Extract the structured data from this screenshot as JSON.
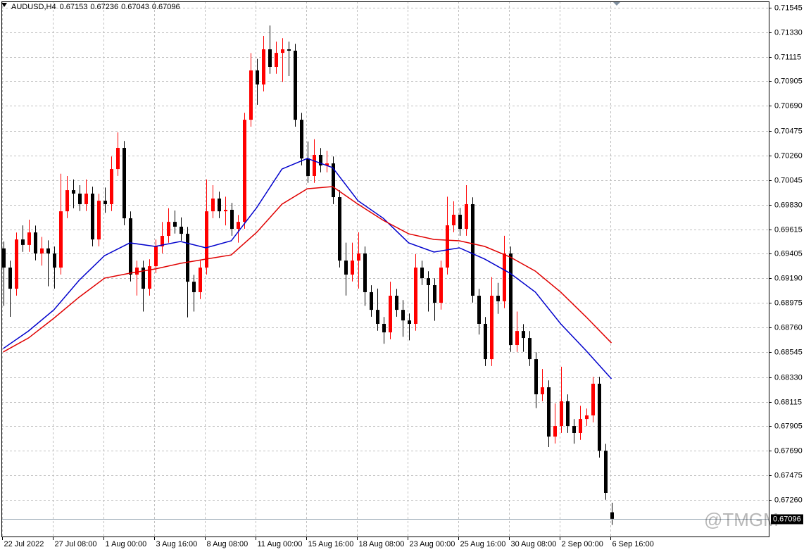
{
  "chart_data": {
    "type": "candlestick",
    "title": "AUDUSD,H4",
    "watermark": "@TMGM",
    "categories": [
      "22 Jul 2022",
      null,
      null,
      null,
      null,
      null,
      null,
      null,
      "27 Jul 08:00",
      null,
      null,
      null,
      null,
      null,
      null,
      null,
      "1 Aug 00:00",
      null,
      null,
      null,
      null,
      null,
      null,
      null,
      "3 Aug 16:00",
      null,
      null,
      null,
      null,
      null,
      null,
      null,
      "8 Aug 08:00",
      null,
      null,
      null,
      null,
      null,
      null,
      null,
      "11 Aug 00:00",
      null,
      null,
      null,
      null,
      null,
      null,
      null,
      "15 Aug 16:00",
      null,
      null,
      null,
      null,
      null,
      null,
      null,
      "18 Aug 08:00",
      null,
      null,
      null,
      null,
      null,
      null,
      null,
      "23 Aug 00:00",
      null,
      null,
      null,
      null,
      null,
      null,
      null,
      "25 Aug 16:00",
      null,
      null,
      null,
      null,
      null,
      null,
      null,
      "30 Aug 08:00",
      null,
      null,
      null,
      null,
      null,
      null,
      null,
      "2 Sep 00:00",
      null,
      null,
      null,
      null,
      null,
      null,
      null,
      "6 Sep 16:00"
    ],
    "open": [
      0.6945,
      0.69283,
      0.69099,
      0.69528,
      0.6948,
      0.69589,
      0.69406,
      0.6945,
      0.69406,
      0.69283,
      0.69773,
      0.69957,
      0.69927,
      0.69835,
      0.69927,
      0.69528,
      0.69865,
      0.69835,
      0.70141,
      0.70325,
      0.69712,
      0.69222,
      0.69283,
      0.69099,
      0.69295,
      0.69467,
      0.69559,
      0.69681,
      0.69639,
      0.69577,
      0.6916,
      0.69069,
      0.69283,
      0.69773,
      0.69884,
      0.69773,
      0.69786,
      0.6962,
      0.69681,
      0.7057,
      0.70999,
      0.70877,
      0.71183,
      0.7103,
      0.71152,
      0.71183,
      0.71171,
      0.7057,
      0.70233,
      0.7008,
      0.70264,
      0.70172,
      0.7019,
      0.69896,
      0.69344,
      0.69222,
      0.69344,
      0.69406,
      0.69069,
      0.68915,
      0.68793,
      0.68719,
      0.69038,
      0.68915,
      0.68823,
      0.68793,
      0.69283,
      0.69191,
      0.6913,
      0.68977,
      0.69283,
      0.69651,
      0.69743,
      0.6962,
      0.69835,
      0.69038,
      0.68793,
      0.68486,
      0.69038,
      0.6899,
      0.69406,
      0.68609,
      0.68731,
      0.6867,
      0.68486,
      0.6818,
      0.68241,
      0.67812,
      0.67904,
      0.68119,
      0.67904,
      0.67843,
      0.67965,
      0.67996,
      0.68272,
      0.67689,
      0.67153
    ],
    "high": [
      0.6951,
      0.69343,
      0.69588,
      0.6965,
      0.697,
      0.69649,
      0.6955,
      0.6952,
      0.69466,
      0.701,
      0.7008,
      0.7005,
      0.7,
      0.7005,
      0.69987,
      0.69925,
      0.6998,
      0.7025,
      0.7046,
      0.70385,
      0.69772,
      0.69343,
      0.69343,
      0.69355,
      0.69527,
      0.6968,
      0.698,
      0.6978,
      0.6972,
      0.69637,
      0.6922,
      0.69343,
      0.7005,
      0.7,
      0.69944,
      0.699,
      0.69846,
      0.69741,
      0.7063,
      0.7115,
      0.711,
      0.713,
      0.7139,
      0.7125,
      0.7128,
      0.7125,
      0.71231,
      0.7063,
      0.7038,
      0.704,
      0.70324,
      0.703,
      0.7025,
      0.69956,
      0.695,
      0.695,
      0.6959,
      0.69466,
      0.69129,
      0.691,
      0.68853,
      0.6916,
      0.69098,
      0.69,
      0.68883,
      0.694,
      0.69343,
      0.69251,
      0.6919,
      0.69343,
      0.699,
      0.6986,
      0.69803,
      0.7,
      0.69895,
      0.69098,
      0.68853,
      0.692,
      0.6915,
      0.6956,
      0.69466,
      0.689,
      0.68791,
      0.6873,
      0.68546,
      0.684,
      0.68301,
      0.681,
      0.6842,
      0.68179,
      0.67964,
      0.6808,
      0.68056,
      0.68332,
      0.68332,
      0.67749,
      0.67236
    ],
    "low": [
      0.6895,
      0.68854,
      0.69039,
      0.6942,
      0.6942,
      0.69346,
      0.693,
      0.6912,
      0.691,
      0.69223,
      0.69713,
      0.698,
      0.69775,
      0.69775,
      0.69468,
      0.69468,
      0.6976,
      0.69775,
      0.70081,
      0.69652,
      0.69162,
      0.6904,
      0.689,
      0.69039,
      0.69235,
      0.69407,
      0.69499,
      0.69579,
      0.69517,
      0.6885,
      0.689,
      0.69009,
      0.69223,
      0.69713,
      0.69713,
      0.6965,
      0.6956,
      0.695,
      0.69621,
      0.7051,
      0.707,
      0.70817,
      0.7097,
      0.7097,
      0.709,
      0.7095,
      0.7051,
      0.70173,
      0.7002,
      0.7002,
      0.70112,
      0.70112,
      0.69836,
      0.69284,
      0.6904,
      0.69162,
      0.691,
      0.6895,
      0.68855,
      0.68733,
      0.6862,
      0.68659,
      0.68855,
      0.6868,
      0.6865,
      0.68733,
      0.69131,
      0.689,
      0.6882,
      0.68917,
      0.69223,
      0.69591,
      0.6956,
      0.6956,
      0.68978,
      0.687,
      0.68426,
      0.68426,
      0.6888,
      0.6893,
      0.68549,
      0.68549,
      0.6855,
      0.68426,
      0.6806,
      0.6812,
      0.6772,
      0.67752,
      0.67844,
      0.67844,
      0.6775,
      0.67783,
      0.67905,
      0.67936,
      0.67629,
      0.67262,
      0.67043
    ],
    "close": [
      0.69283,
      0.69099,
      0.69528,
      0.6948,
      0.69589,
      0.69406,
      0.6945,
      0.69406,
      0.69283,
      0.69773,
      0.69957,
      0.69927,
      0.69835,
      0.69927,
      0.69528,
      0.69865,
      0.69835,
      0.70141,
      0.70325,
      0.69712,
      0.69222,
      0.69283,
      0.69099,
      0.69295,
      0.69467,
      0.69559,
      0.69681,
      0.69639,
      0.69577,
      0.6916,
      0.69069,
      0.69283,
      0.69773,
      0.69884,
      0.69773,
      0.69786,
      0.6962,
      0.69681,
      0.7057,
      0.70999,
      0.70877,
      0.71183,
      0.7103,
      0.71152,
      0.71183,
      0.71171,
      0.7057,
      0.70233,
      0.7008,
      0.70264,
      0.70172,
      0.7019,
      0.69896,
      0.69344,
      0.69222,
      0.69344,
      0.69406,
      0.69069,
      0.68915,
      0.68793,
      0.68719,
      0.69038,
      0.68915,
      0.68823,
      0.68793,
      0.69283,
      0.69191,
      0.6913,
      0.68977,
      0.69283,
      0.69651,
      0.69743,
      0.6962,
      0.69835,
      0.69038,
      0.68793,
      0.68486,
      0.69038,
      0.6899,
      0.69406,
      0.68609,
      0.68731,
      0.6867,
      0.68486,
      0.6818,
      0.68241,
      0.67812,
      0.67904,
      0.68119,
      0.67904,
      0.67843,
      0.67965,
      0.67996,
      0.68272,
      0.67689,
      0.67322,
      0.67096
    ],
    "up_color": "#ff0000",
    "down_color": "#000000",
    "overlays": [
      {
        "color": "#0000cc",
        "x": [
          0,
          4,
          8,
          12,
          16,
          20,
          24,
          28,
          32,
          36,
          40,
          44,
          48,
          52,
          56,
          60,
          64,
          68,
          72,
          76,
          80,
          84,
          88,
          92,
          96
        ],
        "values": [
          0.68578,
          0.68731,
          0.68915,
          0.69173,
          0.69387,
          0.69498,
          0.69467,
          0.6951,
          0.69455,
          0.69516,
          0.69804,
          0.70141,
          0.70233,
          0.70153,
          0.69865,
          0.69712,
          0.69498,
          0.69418,
          0.69455,
          0.69357,
          0.69234,
          0.69069,
          0.68793,
          0.6856,
          0.68315
        ]
      },
      {
        "color": "#e00000",
        "x": [
          0,
          4,
          8,
          12,
          16,
          20,
          24,
          28,
          32,
          36,
          40,
          44,
          48,
          52,
          56,
          60,
          64,
          68,
          72,
          76,
          80,
          84,
          88,
          92,
          96
        ],
        "values": [
          0.68548,
          0.6867,
          0.68842,
          0.69026,
          0.69191,
          0.69234,
          0.69271,
          0.6932,
          0.69357,
          0.69393,
          0.69589,
          0.69835,
          0.69969,
          0.69988,
          0.69835,
          0.69694,
          0.69577,
          0.69528,
          0.69516,
          0.69467,
          0.69375,
          0.69252,
          0.69069,
          0.68854,
          0.68627
        ]
      }
    ],
    "ylim": [
      0.66942,
      0.716
    ],
    "yticks": [
      0.71545,
      {
        "value": 0.7133,
        "label": "0.71330"
      },
      0.71115,
      0.70905,
      {
        "value": 0.7069,
        "label": "0.70690"
      },
      0.70475,
      {
        "value": 0.7026,
        "label": "0.70260"
      },
      0.70045,
      {
        "value": 0.6983,
        "label": "0.69830"
      },
      0.69615,
      0.69405,
      {
        "value": 0.6919,
        "label": "0.69190"
      },
      0.68975,
      {
        "value": 0.6876,
        "label": "0.68760"
      },
      0.68545,
      {
        "value": 0.6833,
        "label": "0.68330"
      },
      0.68115,
      0.67905,
      {
        "value": 0.6769,
        "label": "0.67690"
      },
      0.67475,
      {
        "value": 0.6726,
        "label": "0.67260"
      }
    ],
    "grid": true
  }
}
